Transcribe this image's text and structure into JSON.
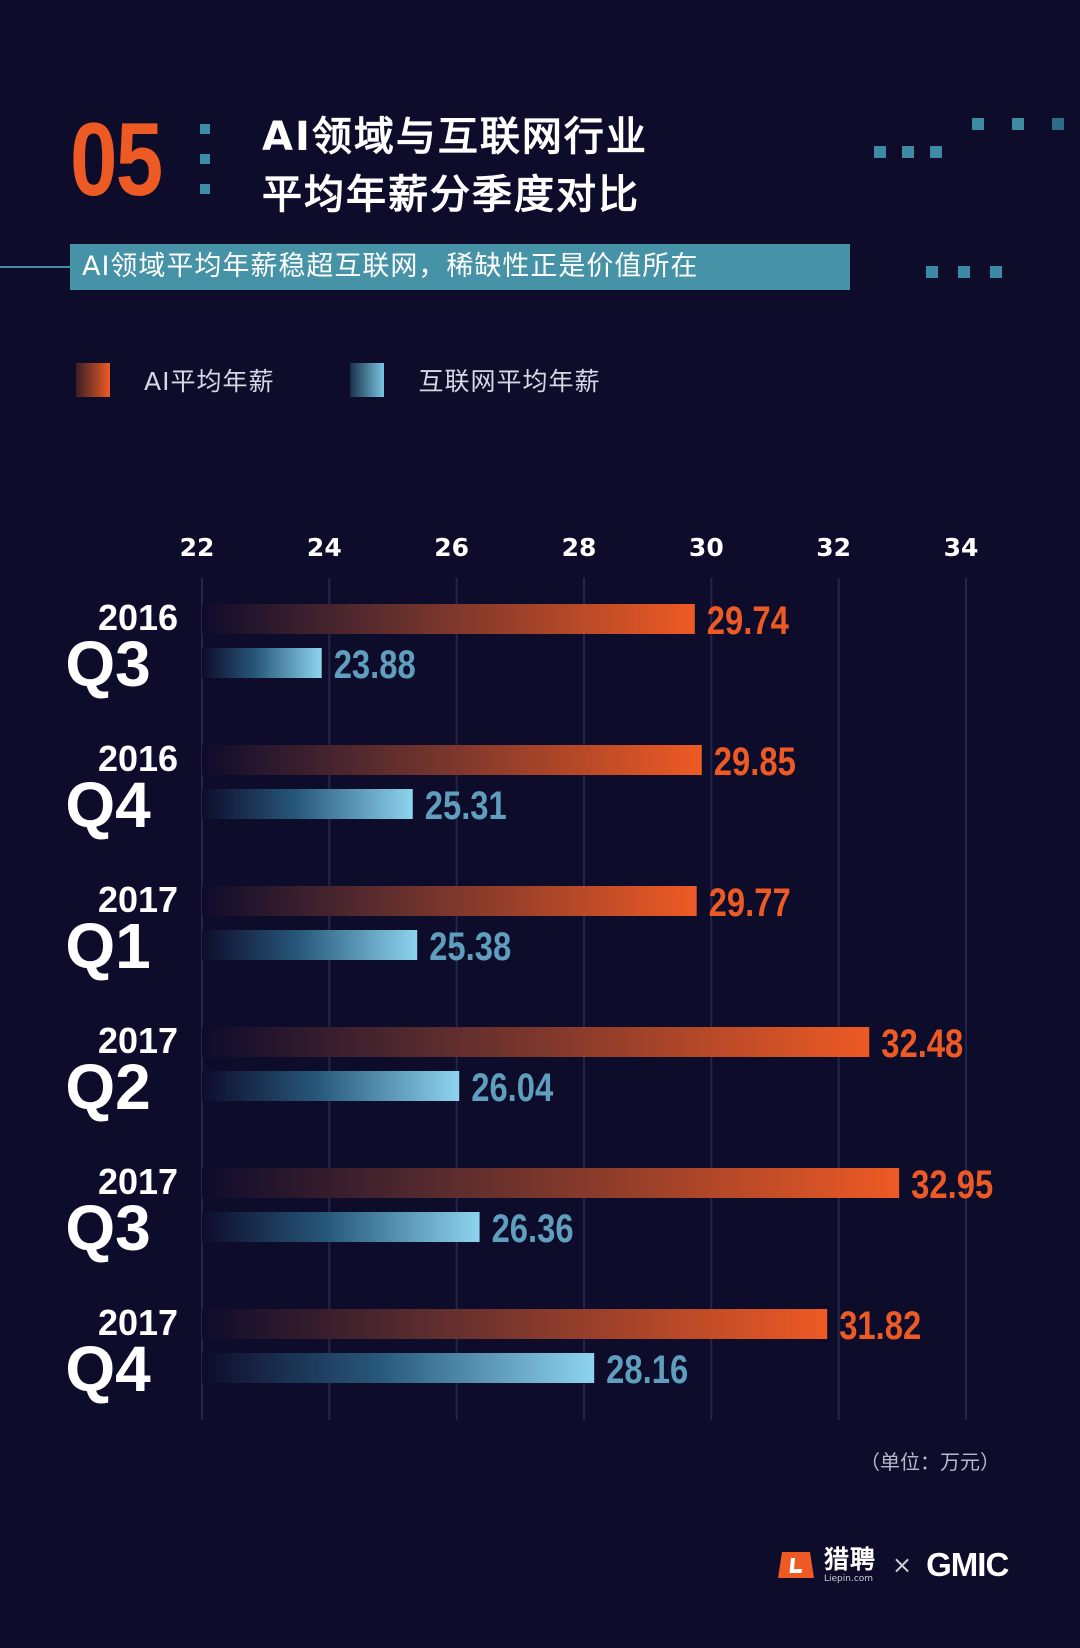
{
  "header": {
    "number": "05",
    "title_line1": "AI领域与互联网行业",
    "title_line2": "平均年薪分季度对比",
    "subtitle": "AI领域平均年薪稳超互联网，稀缺性正是价值所在"
  },
  "colors": {
    "background": "#0e0c2b",
    "accent_orange": "#ee5a24",
    "accent_blue": "#5f9fbd",
    "subtitle_bg": "#4693a8"
  },
  "chart_data": {
    "type": "bar",
    "orientation": "horizontal",
    "title": "",
    "xlabel": "",
    "ylabel": "",
    "xlim": [
      22,
      34
    ],
    "x_ticks": [
      22,
      24,
      26,
      28,
      30,
      32,
      34
    ],
    "grid": true,
    "legend_position": "top-left",
    "categories": [
      {
        "year": "2016",
        "quarter": "Q3"
      },
      {
        "year": "2016",
        "quarter": "Q4"
      },
      {
        "year": "2017",
        "quarter": "Q1"
      },
      {
        "year": "2017",
        "quarter": "Q2"
      },
      {
        "year": "2017",
        "quarter": "Q3"
      },
      {
        "year": "2017",
        "quarter": "Q4"
      }
    ],
    "series": [
      {
        "name": "AI平均年薪",
        "color": "#ee5a24",
        "values": [
          29.74,
          29.85,
          29.77,
          32.48,
          32.95,
          31.82
        ]
      },
      {
        "name": "互联网平均年薪",
        "color": "#5f9fbd",
        "values": [
          23.88,
          25.31,
          25.38,
          26.04,
          26.36,
          28.16
        ]
      }
    ],
    "value_labels": [
      [
        "29.74",
        "29.85",
        "29.77",
        "32.48",
        "32.95",
        "31.82"
      ],
      [
        "23.88",
        "25.31",
        "25.38",
        "26.04",
        "26.36",
        "28.16"
      ]
    ],
    "unit_note": "（单位：万元）"
  },
  "footer": {
    "brand_cn": "猎聘",
    "brand_en": "Liepin.com",
    "times": "×",
    "partner": "GMIC"
  }
}
